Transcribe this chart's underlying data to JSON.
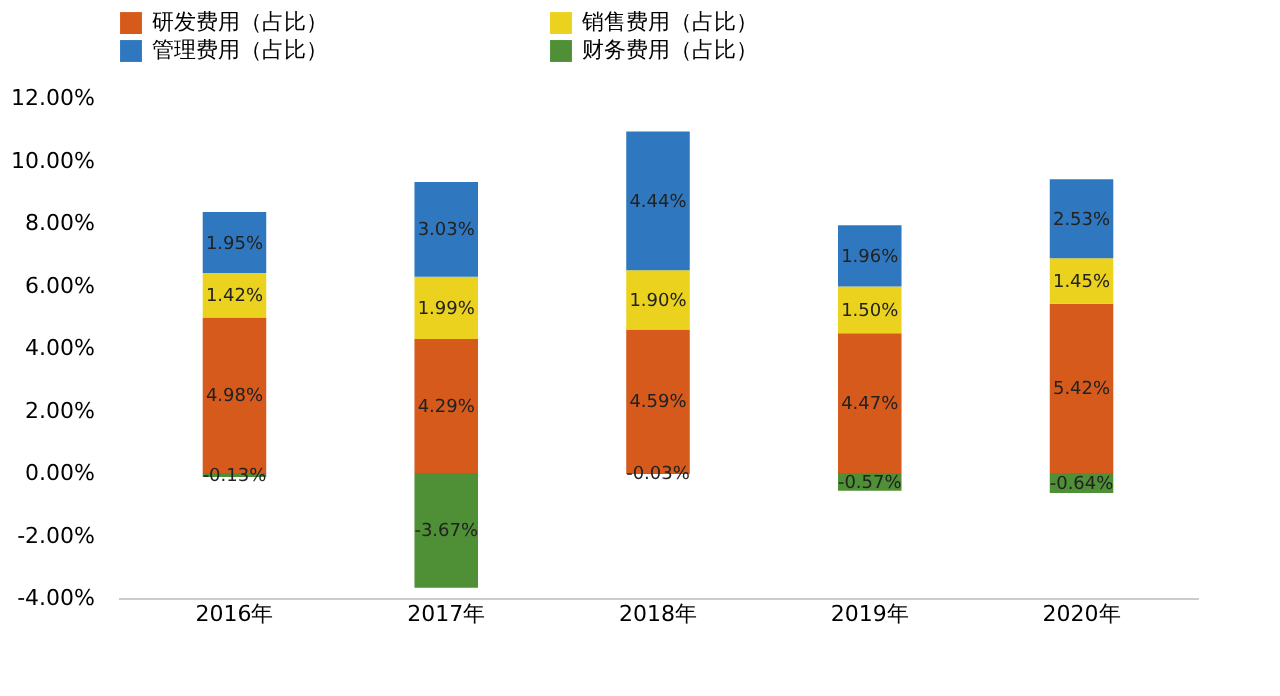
{
  "chart_data": {
    "type": "bar",
    "stacked": true,
    "categories": [
      "2016年",
      "2017年",
      "2018年",
      "2019年",
      "2020年"
    ],
    "series": [
      {
        "name": "研发费用（占比）",
        "color": "#d55a1c",
        "values": [
          4.98,
          4.29,
          4.59,
          4.47,
          5.42
        ],
        "value_labels": [
          "4.98%",
          "4.29%",
          "4.59%",
          "4.47%",
          "5.42%"
        ]
      },
      {
        "name": "销售费用（占比）",
        "color": "#ebd21e",
        "values": [
          1.42,
          1.99,
          1.9,
          1.5,
          1.45
        ],
        "value_labels": [
          "1.42%",
          "1.99%",
          "1.90%",
          "1.50%",
          "1.45%"
        ]
      },
      {
        "name": "管理费用（占比）",
        "color": "#2f78c0",
        "values": [
          1.95,
          3.03,
          4.44,
          1.96,
          2.53
        ],
        "value_labels": [
          "1.95%",
          "3.03%",
          "4.44%",
          "1.96%",
          "2.53%"
        ]
      },
      {
        "name": "财务费用（占比）",
        "color": "#4f8f35",
        "values": [
          -0.13,
          -3.67,
          -0.03,
          -0.57,
          -0.64
        ],
        "value_labels": [
          "-0.13%",
          "-3.67%",
          "-0.03%",
          "-0.57%",
          "-0.64%"
        ]
      }
    ],
    "ylim": [
      -4,
      12
    ],
    "yticks": [
      {
        "value": -4,
        "label": "-4.00%"
      },
      {
        "value": -2,
        "label": "-2.00%"
      },
      {
        "value": 0,
        "label": "0.00%"
      },
      {
        "value": 2,
        "label": "2.00%"
      },
      {
        "value": 4,
        "label": "4.00%"
      },
      {
        "value": 6,
        "label": "6.00%"
      },
      {
        "value": 8,
        "label": "8.00%"
      },
      {
        "value": 10,
        "label": "10.00%"
      },
      {
        "value": 12,
        "label": "12.00%"
      }
    ],
    "grid": false,
    "legend": "top"
  }
}
